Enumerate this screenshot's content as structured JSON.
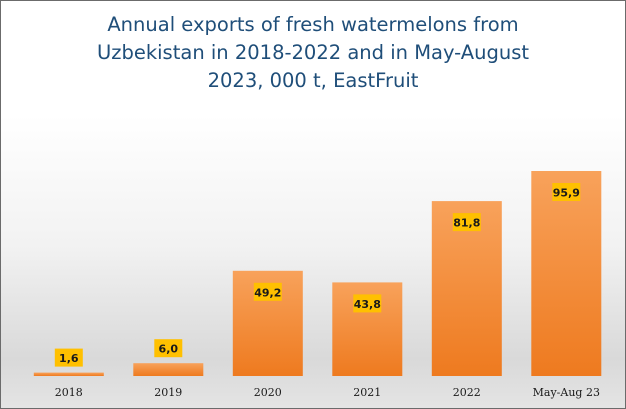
{
  "chart_data": {
    "type": "bar",
    "title": "Annual exports of fresh watermelons from\nUzbekistan in 2018-2022 and in May-August\n2023, 000 t, EastFruit",
    "categories": [
      "2018",
      "2019",
      "2020",
      "2021",
      "2022",
      "May-Aug 23"
    ],
    "values": [
      1.6,
      6.0,
      49.2,
      43.8,
      81.8,
      95.9
    ],
    "data_labels": [
      "1,6",
      "6,0",
      "49,2",
      "43,8",
      "81,8",
      "95,9"
    ],
    "ylim": [
      0,
      100
    ],
    "grid": false,
    "legend": "none",
    "colors": {
      "bar_top": "#f8a25b",
      "bar_bottom": "#ee7a1f",
      "label_bg": "#ffc000",
      "title": "#1f4e79",
      "tick_text": "#1a1a1a"
    }
  }
}
